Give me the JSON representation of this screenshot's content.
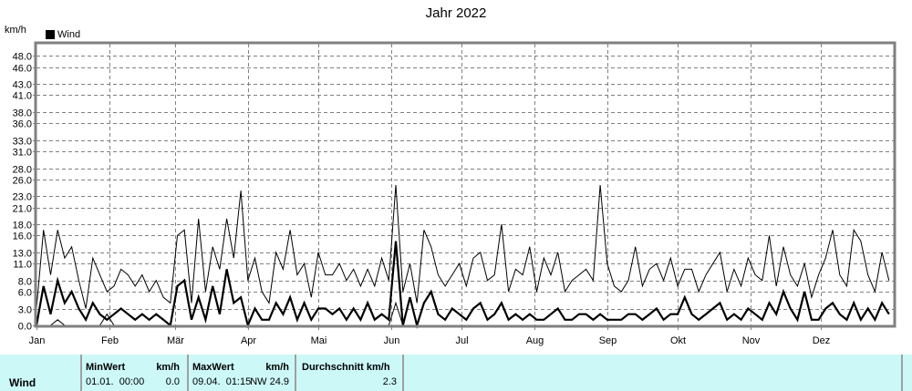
{
  "title": "Jahr 2022",
  "unit_label": "km/h",
  "legend": {
    "label": "Wind",
    "color": "#000000"
  },
  "colors": {
    "grid": "#808080",
    "axis": "#808080",
    "stats_bg": "#ccf8f8",
    "line": "#000000"
  },
  "chart_data": {
    "type": "line",
    "title": "Jahr 2022",
    "xlabel": "",
    "ylabel": "km/h",
    "ylim": [
      0,
      50
    ],
    "yticks": [
      0.0,
      3.0,
      6.0,
      8.0,
      11.0,
      13.0,
      16.0,
      18.0,
      21.0,
      23.0,
      26.0,
      28.0,
      31.0,
      33.0,
      36.0,
      38.0,
      41.0,
      43.0,
      46.0,
      48.0
    ],
    "ytick_labels": [
      "0.0",
      "3.0",
      "6.0",
      "8.0",
      "11.0",
      "13.0",
      "16.0",
      "18.0",
      "21.0",
      "23.0",
      "26.0",
      "28.0",
      "31.0",
      "33.0",
      "36.0",
      "38.0",
      "41.0",
      "43.0",
      "46.0",
      "48.0"
    ],
    "categories": [
      "Jan",
      "Feb",
      "Mär",
      "Apr",
      "Mai",
      "Jun",
      "Jul",
      "Aug",
      "Sep",
      "Okt",
      "Nov",
      "Dez"
    ],
    "month_start_day": [
      0,
      31,
      59,
      90,
      120,
      151,
      181,
      212,
      243,
      273,
      304,
      334
    ],
    "days_in_year": 365,
    "grid": true,
    "legend_position": "top-left",
    "sample_step_days": 3,
    "series": [
      {
        "name": "Wind Max",
        "stroke": 1,
        "values": [
          3,
          17,
          9,
          17,
          12,
          14,
          8,
          3,
          12,
          9,
          6,
          7,
          10,
          9,
          7,
          9,
          6,
          8,
          5,
          4,
          16,
          17,
          4,
          19,
          6,
          14,
          10,
          19,
          12,
          24,
          8,
          12,
          6,
          4,
          13,
          10,
          17,
          9,
          11,
          5,
          13,
          9,
          9,
          11,
          8,
          10,
          7,
          10,
          7,
          12,
          8,
          25,
          6,
          11,
          4,
          17,
          14,
          9,
          7,
          9,
          11,
          7,
          12,
          13,
          8,
          9,
          18,
          6,
          10,
          9,
          14,
          6,
          12,
          9,
          13,
          6,
          8,
          9,
          10,
          8,
          25,
          11,
          7,
          6,
          8,
          14,
          7,
          10,
          11,
          8,
          12,
          7,
          10,
          10,
          6,
          9,
          11,
          13,
          6,
          10,
          7,
          12,
          9,
          8,
          16,
          7,
          14,
          9,
          7,
          11,
          5,
          9,
          12,
          17,
          9,
          7,
          17,
          15,
          9,
          6,
          13,
          8
        ]
      },
      {
        "name": "Wind Avg",
        "stroke": 2.2,
        "values": [
          0,
          7,
          2,
          8,
          4,
          6,
          3,
          1,
          4,
          2,
          1,
          2,
          3,
          2,
          1,
          2,
          1,
          2,
          1,
          0,
          7,
          8,
          1,
          5,
          1,
          7,
          2,
          10,
          4,
          5,
          0,
          3,
          1,
          1,
          4,
          2,
          5,
          1,
          4,
          1,
          3,
          3,
          2,
          3,
          1,
          3,
          1,
          4,
          1,
          2,
          1,
          15,
          0,
          5,
          0,
          4,
          6,
          2,
          1,
          3,
          2,
          1,
          3,
          4,
          1,
          2,
          4,
          1,
          2,
          1,
          2,
          1,
          1,
          2,
          3,
          1,
          1,
          2,
          2,
          1,
          2,
          1,
          1,
          1,
          2,
          2,
          1,
          2,
          3,
          1,
          2,
          2,
          5,
          2,
          1,
          2,
          3,
          4,
          1,
          2,
          1,
          3,
          2,
          1,
          4,
          2,
          6,
          3,
          1,
          6,
          1,
          1,
          3,
          4,
          2,
          1,
          4,
          1,
          3,
          1,
          4,
          2
        ]
      },
      {
        "name": "Wind Min",
        "stroke": 1,
        "values": [
          0,
          0,
          0,
          1,
          0,
          0,
          0,
          0,
          0,
          0,
          2,
          0,
          0,
          0,
          0,
          0,
          0,
          0,
          0,
          0,
          0,
          0,
          0,
          0,
          0,
          0,
          0,
          0,
          0,
          0,
          0,
          0,
          0,
          0,
          0,
          0,
          0,
          0,
          0,
          0,
          0,
          0,
          0,
          0,
          0,
          0,
          0,
          0,
          0,
          0,
          0,
          4,
          0,
          0,
          0,
          0,
          0,
          0,
          0,
          0,
          0,
          0,
          0,
          0,
          0,
          0,
          0,
          0,
          0,
          0,
          0,
          0,
          0,
          0,
          0,
          0,
          0,
          0,
          0,
          0,
          0,
          0,
          0,
          0,
          0,
          0,
          0,
          0,
          0,
          0,
          0,
          0,
          0,
          0,
          0,
          0,
          0,
          0,
          0,
          0,
          0,
          0,
          0,
          0,
          0,
          0,
          0,
          0,
          0,
          0,
          0,
          0,
          0,
          0,
          0,
          0,
          0,
          0,
          0,
          0,
          0,
          0
        ]
      }
    ]
  },
  "stats": {
    "row_label": "Wind",
    "min": {
      "header": "MinWert",
      "unit": "km/h",
      "date": "01.01.  00:00",
      "value": "0.0"
    },
    "max": {
      "header": "MaxWert",
      "unit": "km/h",
      "date": "09.04.  01:15",
      "direction": "NW",
      "value": "24.9"
    },
    "avg": {
      "header": "Durchschnitt km/h",
      "value": "2.3"
    }
  }
}
